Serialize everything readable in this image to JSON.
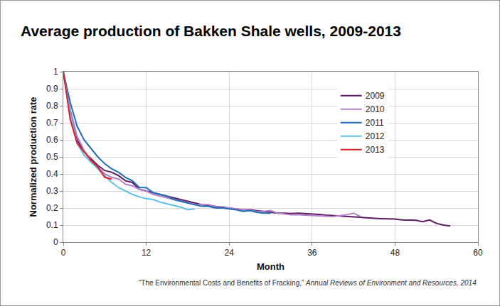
{
  "chart_data": {
    "type": "line",
    "title": "Average production of Bakken Shale wells, 2009-2013",
    "x_label": "Month",
    "y_label": "Normalized production rate",
    "source": [
      "“The Environmental Costs and Benefits of Fracking,”",
      "Annual Reviews of Environment and Resources, 2014"
    ],
    "x": [
      0,
      1,
      2,
      3,
      4,
      5,
      6,
      7,
      8,
      9,
      10,
      11,
      12,
      13,
      14,
      15,
      16,
      17,
      18,
      19,
      20,
      21,
      22,
      23,
      24,
      25,
      26,
      27,
      28,
      29,
      30,
      31,
      32,
      33,
      34,
      35,
      36,
      37,
      38,
      39,
      40,
      41,
      42,
      43,
      44,
      45,
      46,
      47,
      48,
      49,
      50,
      51,
      52,
      53,
      54,
      55,
      56
    ],
    "series": [
      {
        "name": "2009",
        "color": "#5b1a5f",
        "values": [
          1,
          0.75,
          0.6,
          0.53,
          0.49,
          0.45,
          0.42,
          0.41,
          0.39,
          0.36,
          0.35,
          0.31,
          0.3,
          0.29,
          0.28,
          0.27,
          0.26,
          0.25,
          0.24,
          0.23,
          0.22,
          0.215,
          0.21,
          0.205,
          0.2,
          0.195,
          0.19,
          0.19,
          0.185,
          0.18,
          0.175,
          0.17,
          0.17,
          0.168,
          0.17,
          0.168,
          0.165,
          0.162,
          0.158,
          0.155,
          0.152,
          0.15,
          0.148,
          0.145,
          0.142,
          0.14,
          0.138,
          0.137,
          0.135,
          0.13,
          0.128,
          0.128,
          0.12,
          0.13,
          0.11,
          0.1,
          0.095
        ]
      },
      {
        "name": "2010",
        "color": "#b37fc8",
        "values": [
          1,
          0.78,
          0.62,
          0.54,
          0.48,
          0.44,
          0.4,
          0.38,
          0.37,
          0.34,
          0.33,
          0.31,
          0.3,
          0.28,
          0.27,
          0.26,
          0.25,
          0.24,
          0.23,
          0.22,
          0.22,
          0.22,
          0.21,
          0.2,
          0.2,
          0.195,
          0.19,
          0.185,
          0.18,
          0.18,
          0.185,
          0.17,
          0.165,
          0.16,
          0.16,
          0.158,
          0.155,
          0.152,
          0.15,
          0.15,
          0.155,
          0.16,
          0.17,
          0.15,
          null,
          null,
          null,
          null,
          null,
          null,
          null,
          null,
          null,
          null,
          null,
          null,
          null
        ]
      },
      {
        "name": "2011",
        "color": "#1f6fb8",
        "values": [
          1,
          0.82,
          0.68,
          0.6,
          0.55,
          0.5,
          0.46,
          0.43,
          0.41,
          0.38,
          0.36,
          0.32,
          0.32,
          0.29,
          0.28,
          0.27,
          0.25,
          0.24,
          0.23,
          0.22,
          0.21,
          0.21,
          0.2,
          0.2,
          0.195,
          0.19,
          0.18,
          0.185,
          0.175,
          0.17,
          0.17,
          null,
          null,
          null,
          null,
          null,
          null,
          null,
          null,
          null,
          null,
          null,
          null,
          null,
          null,
          null,
          null,
          null,
          null,
          null,
          null,
          null,
          null,
          null,
          null,
          null,
          null
        ]
      },
      {
        "name": "2012",
        "color": "#5cc0ea",
        "values": [
          1,
          0.75,
          0.58,
          0.51,
          0.47,
          0.43,
          0.39,
          0.35,
          0.32,
          0.3,
          0.28,
          0.265,
          0.255,
          0.25,
          0.235,
          0.225,
          0.215,
          0.205,
          0.19,
          0.195,
          null,
          null,
          null,
          null,
          null,
          null,
          null,
          null,
          null,
          null,
          null,
          null,
          null,
          null,
          null,
          null,
          null,
          null,
          null,
          null,
          null,
          null,
          null,
          null,
          null,
          null,
          null,
          null,
          null,
          null,
          null,
          null,
          null,
          null,
          null,
          null,
          null
        ]
      },
      {
        "name": "2013",
        "color": "#e0202a",
        "values": [
          1,
          0.72,
          0.58,
          0.53,
          0.48,
          0.44,
          0.38,
          0.37,
          null,
          null,
          null,
          null,
          null,
          null,
          null,
          null,
          null,
          null,
          null,
          null,
          null,
          null,
          null,
          null,
          null,
          null,
          null,
          null,
          null,
          null,
          null,
          null,
          null,
          null,
          null,
          null,
          null,
          null,
          null,
          null,
          null,
          null,
          null,
          null,
          null,
          null,
          null,
          null,
          null,
          null,
          null,
          null,
          null,
          null,
          null,
          null,
          null
        ]
      }
    ],
    "xlim": [
      0,
      60
    ],
    "xticks": [
      0,
      12,
      24,
      36,
      48,
      60
    ],
    "ylim": [
      0,
      1
    ],
    "yticks": [
      0,
      0.1,
      0.2,
      0.3,
      0.4,
      0.5,
      0.6,
      0.7,
      0.8,
      0.9,
      1
    ],
    "grid": true,
    "legend": "upper right"
  }
}
